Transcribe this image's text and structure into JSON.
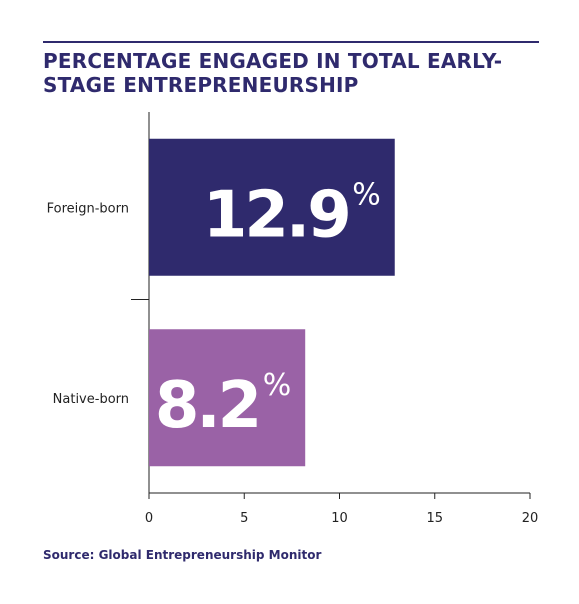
{
  "chart_data": {
    "type": "bar",
    "orientation": "horizontal",
    "title": "PERCENTAGE ENGAGED IN TOTAL EARLY-STAGE ENTREPRENEURSHIP",
    "categories": [
      "Foreign-born",
      "Native-born"
    ],
    "values": [
      12.9,
      8.2
    ],
    "value_labels": [
      "12.9",
      "8.2"
    ],
    "value_unit": "%",
    "colors": [
      "#2f2a6d",
      "#9a62a6"
    ],
    "xlim": [
      0,
      20
    ],
    "xticks": [
      "0",
      "5",
      "10",
      "15",
      "20"
    ],
    "grid": false,
    "source": "Source: Global Entrepreneurship Monitor"
  }
}
